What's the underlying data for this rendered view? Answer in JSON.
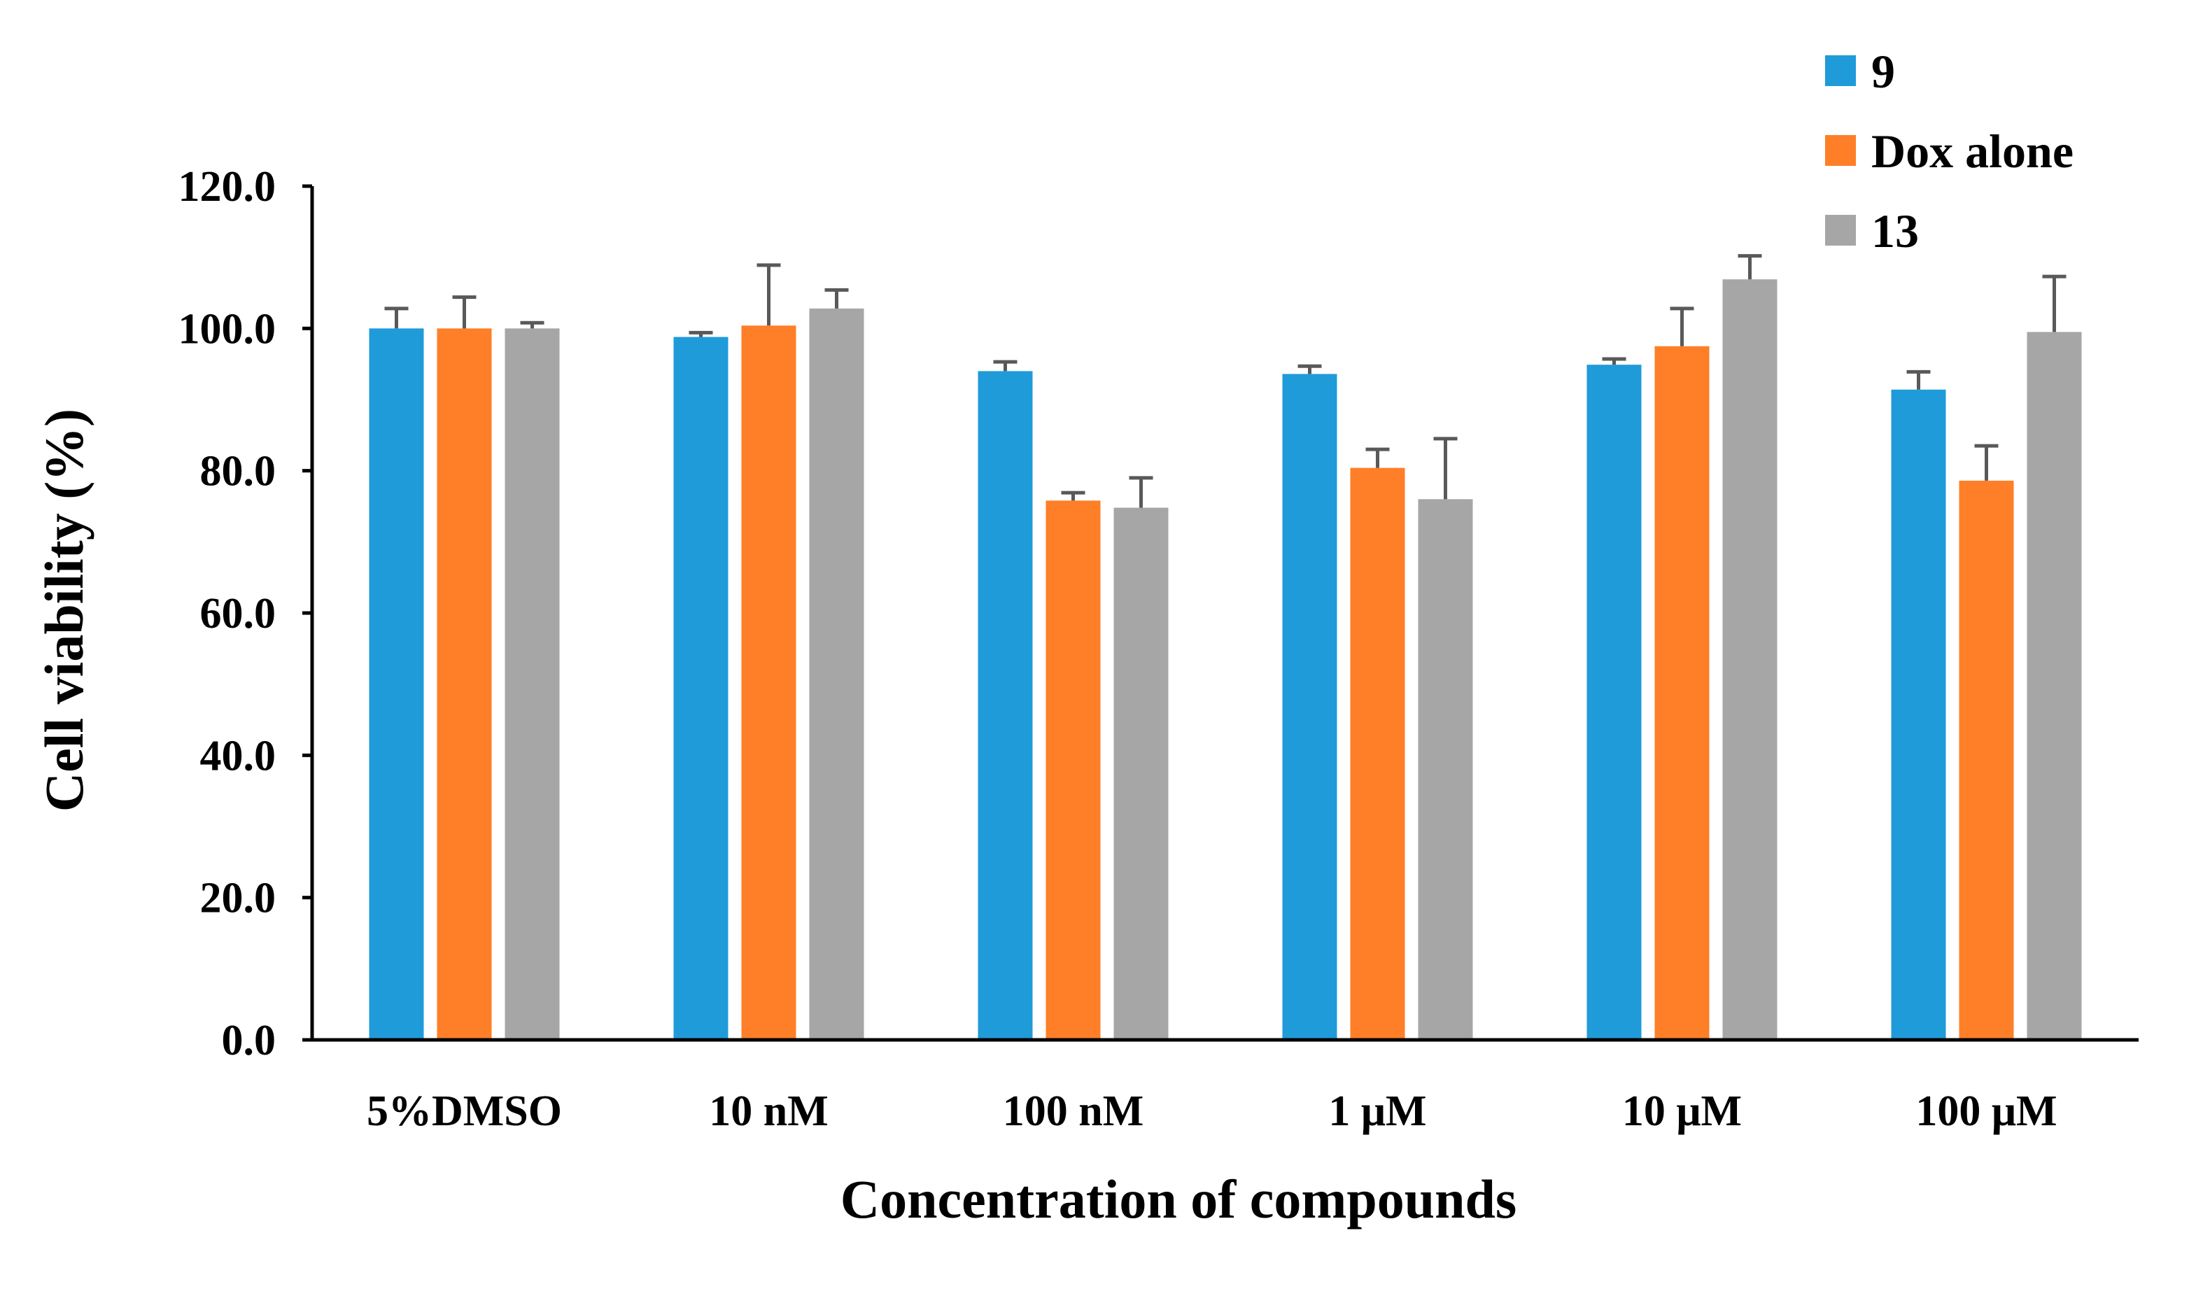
{
  "chart_data": {
    "type": "bar",
    "title": "",
    "xlabel": "Concentration of compounds",
    "ylabel": "Cell viability (%)",
    "ylim": [
      0,
      120
    ],
    "yticks": [
      "0.0",
      "20.0",
      "40.0",
      "60.0",
      "80.0",
      "100.0",
      "120.0"
    ],
    "ytick_values": [
      0,
      20,
      40,
      60,
      80,
      100,
      120
    ],
    "categories": [
      "5%DMSO",
      "10 nM",
      "100 nM",
      "1 μM",
      "10 μM",
      "100 μM"
    ],
    "series": [
      {
        "name": "9",
        "color": "#1f9bd9",
        "values": [
          100.0,
          98.8,
          94.0,
          93.6,
          94.9,
          91.4
        ],
        "errors": [
          2.8,
          0.6,
          1.3,
          1.1,
          0.8,
          2.5
        ]
      },
      {
        "name": "Dox alone",
        "color": "#fe7f27",
        "values": [
          100.0,
          100.4,
          75.8,
          80.4,
          97.5,
          78.6
        ],
        "errors": [
          4.4,
          8.5,
          1.1,
          2.6,
          5.3,
          4.9
        ]
      },
      {
        "name": "13",
        "color": "#a6a6a6",
        "values": [
          100.0,
          102.8,
          74.8,
          76.0,
          106.9,
          99.5
        ],
        "errors": [
          0.8,
          2.6,
          4.2,
          8.5,
          3.3,
          7.8
        ]
      }
    ],
    "error_bar_color": "#595959",
    "legend": "top-right",
    "grid": false
  }
}
